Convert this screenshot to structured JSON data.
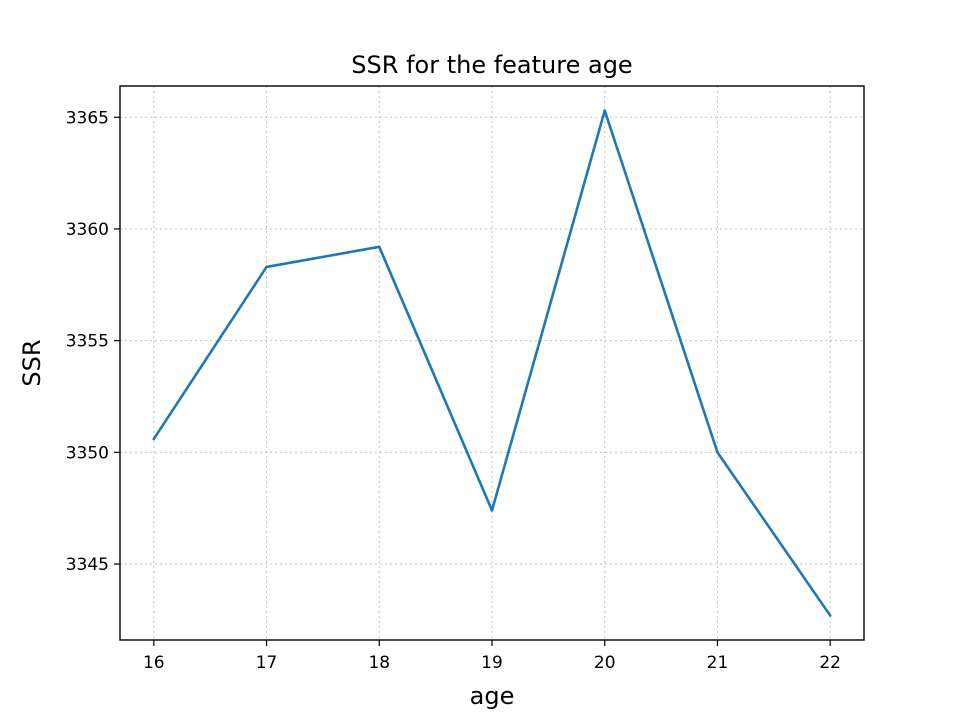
{
  "chart_data": {
    "type": "line",
    "title": "SSR for the feature age",
    "xlabel": "age",
    "ylabel": "SSR",
    "x": [
      16,
      17,
      18,
      19,
      20,
      21,
      22
    ],
    "series": [
      {
        "values": [
          3350.6,
          3358.3,
          3359.2,
          3347.4,
          3365.3,
          3350.0,
          3342.7
        ],
        "color": "#1f77b4"
      }
    ],
    "xticks": [
      16,
      17,
      18,
      19,
      20,
      21,
      22
    ],
    "yticks": [
      3345,
      3350,
      3355,
      3360,
      3365
    ],
    "xlim": [
      15.7,
      22.3
    ],
    "ylim": [
      3341.6,
      3366.4
    ],
    "grid": true
  }
}
